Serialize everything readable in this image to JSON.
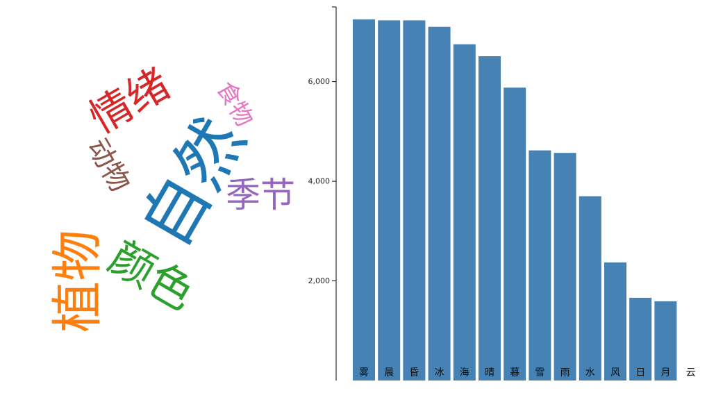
{
  "word_cloud": {
    "words": [
      {
        "text": "自然",
        "color": "#1f77b4"
      },
      {
        "text": "情绪",
        "color": "#d62728"
      },
      {
        "text": "食物",
        "color": "#e377c2"
      },
      {
        "text": "动物",
        "color": "#8c564b"
      },
      {
        "text": "季节",
        "color": "#9467bd"
      },
      {
        "text": "植物",
        "color": "#ff7f0e"
      },
      {
        "text": "颜色",
        "color": "#2ca02c"
      }
    ]
  },
  "chart_data": {
    "type": "bar",
    "categories": [
      "雾",
      "晨",
      "昏",
      "冰",
      "海",
      "晴",
      "暮",
      "雪",
      "雨",
      "水",
      "风",
      "日",
      "月",
      "云"
    ],
    "values": [
      7250,
      7230,
      7230,
      7100,
      6750,
      6510,
      5880,
      4620,
      4570,
      3700,
      2370,
      1660,
      1590,
      0
    ],
    "ylim": [
      0,
      7500
    ],
    "yticks": [
      "2,000",
      "4,000",
      "6,000"
    ],
    "bar_color": "#4682b4",
    "grid": false
  }
}
